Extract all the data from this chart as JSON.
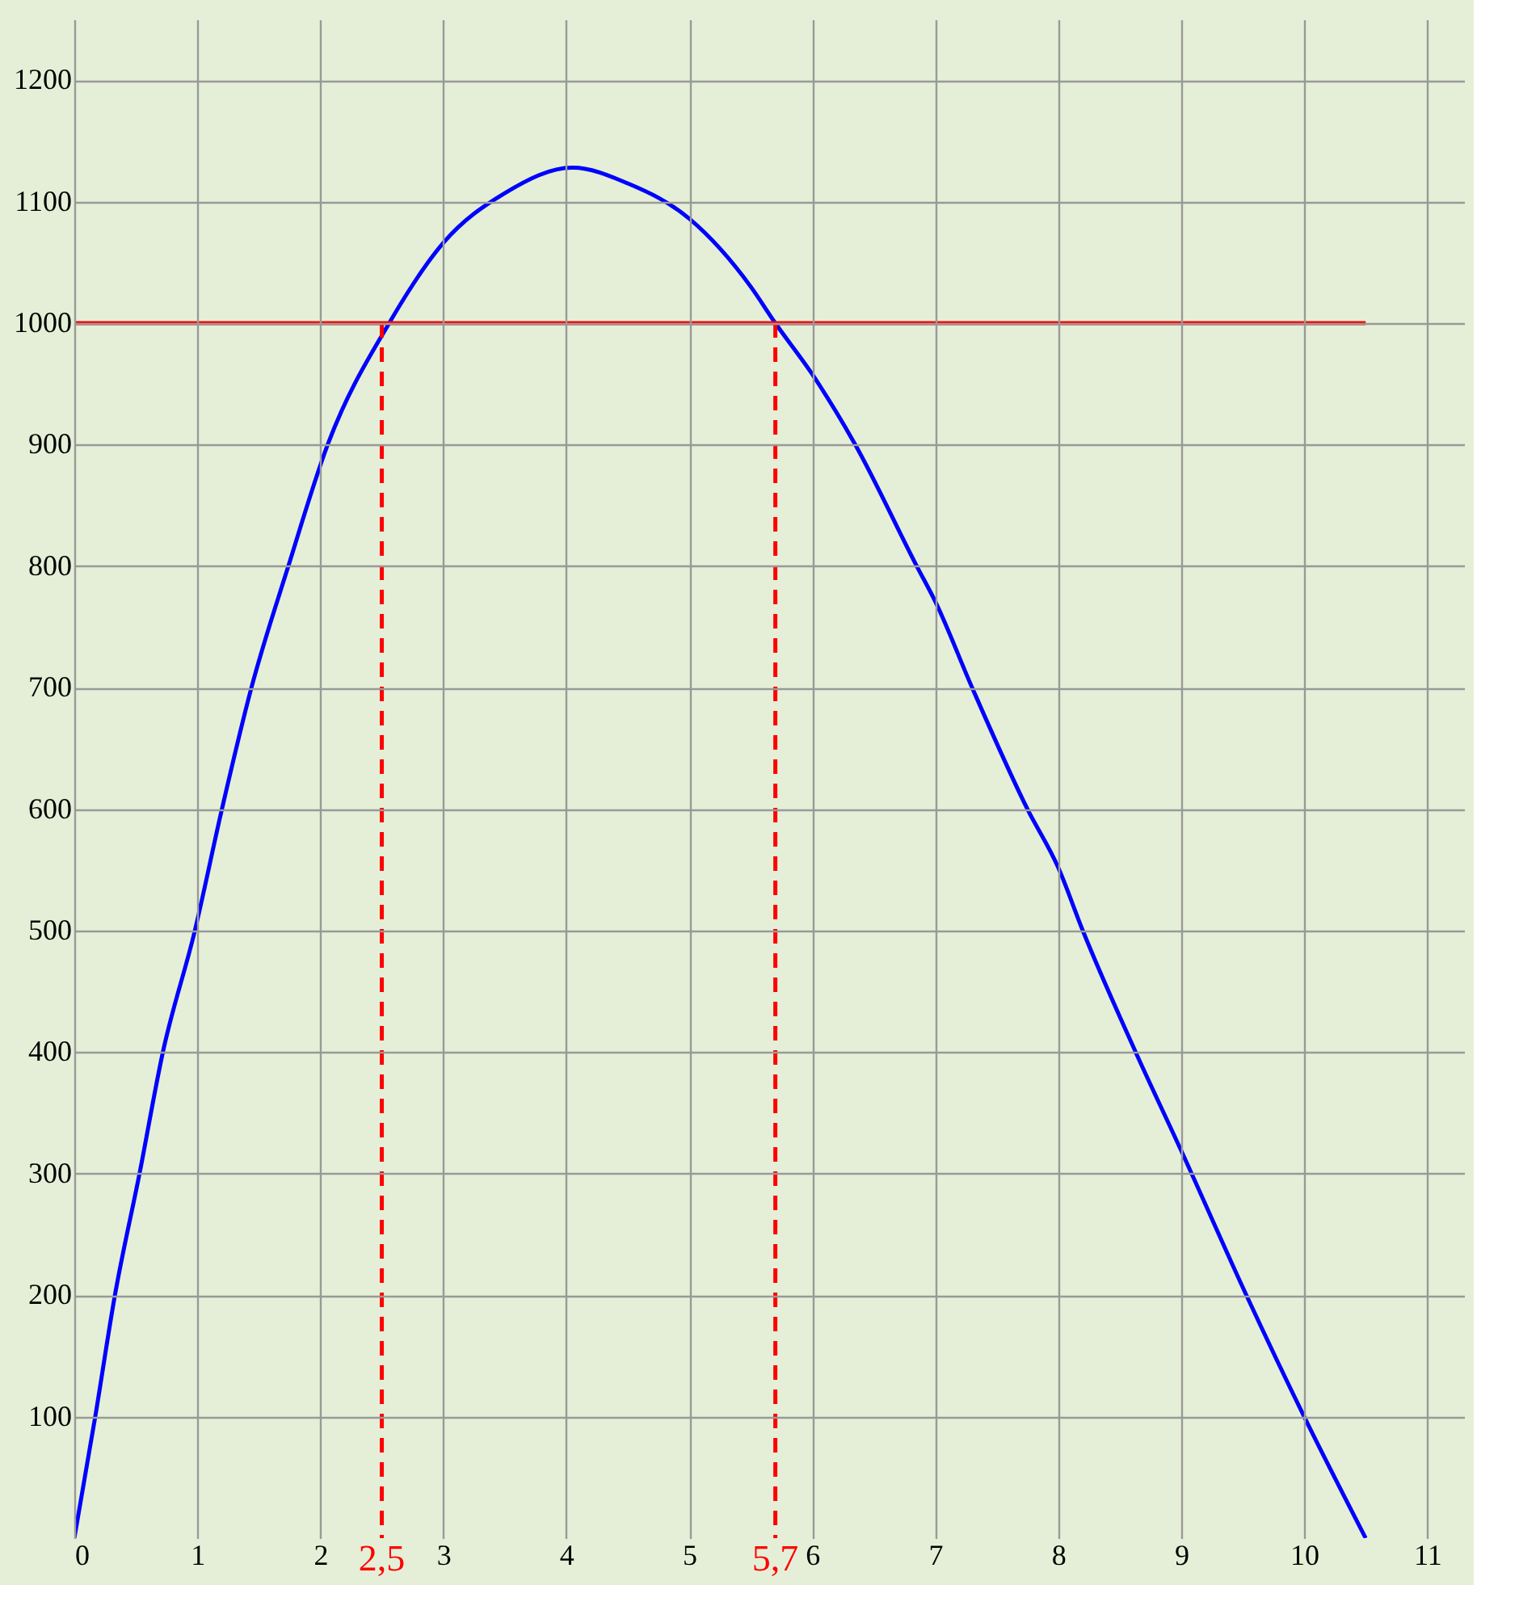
{
  "chart_data": {
    "type": "line",
    "xlim": [
      0,
      11.3
    ],
    "ylim": [
      0,
      1250
    ],
    "xticks": [
      0,
      1,
      2,
      3,
      4,
      5,
      6,
      7,
      8,
      9,
      10,
      11
    ],
    "yticks": [
      100,
      200,
      300,
      400,
      500,
      600,
      700,
      800,
      900,
      1000,
      1100,
      1200
    ],
    "grid": true,
    "series": [
      {
        "color": "#0000ff",
        "line_style": "solid",
        "x": [
          0,
          0.17,
          0.33,
          0.53,
          0.72,
          0.98,
          1.2,
          1.44,
          1.74,
          2.06,
          2.56,
          3,
          3.5,
          4.05,
          4.5,
          5,
          5.5,
          5.7,
          6,
          6.35,
          6.85,
          7,
          7.3,
          7.75,
          8,
          8.2,
          8.63,
          9,
          9.53,
          10,
          10.5
        ],
        "values": [
          0,
          100,
          200,
          300,
          400,
          500,
          600,
          700,
          800,
          900,
          1000,
          1066,
          1107,
          1128,
          1115,
          1086,
          1030,
          1000,
          958,
          900,
          800,
          771,
          700,
          600,
          552,
          500,
          400,
          319,
          200,
          100,
          0
        ]
      },
      {
        "color": "#ff0000",
        "x": [
          0,
          10.5
        ],
        "values": [
          1000,
          1000
        ],
        "line_style": "solid"
      },
      {
        "color": "#ff0000",
        "x": [
          2.5,
          2.5
        ],
        "values": [
          1000,
          0
        ],
        "line_style": "dashed"
      },
      {
        "color": "#ff0000",
        "x": [
          5.7,
          5.7
        ],
        "values": [
          1000,
          0
        ],
        "line_style": "dashed"
      }
    ],
    "annotations": [
      {
        "text": "2,5",
        "x": 2.5,
        "y": 0
      },
      {
        "text": "5,7",
        "x": 5.7,
        "y": 0
      }
    ]
  }
}
